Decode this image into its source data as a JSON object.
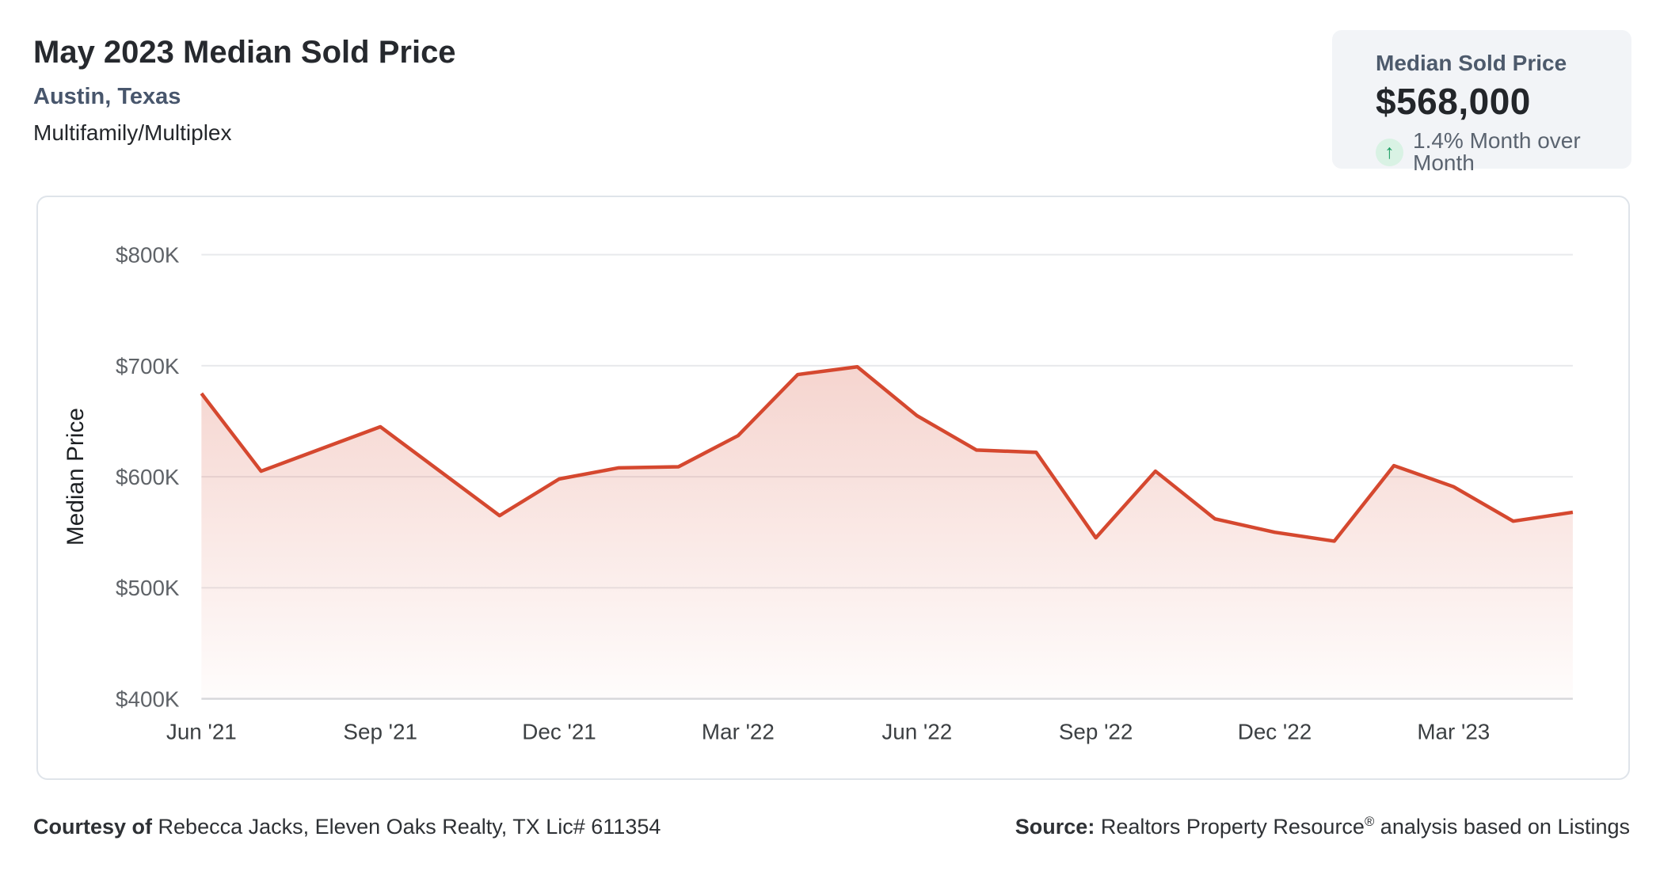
{
  "header": {
    "title": "May 2023 Median Sold Price",
    "location": "Austin, Texas",
    "property_type": "Multifamily/Multiplex"
  },
  "stat_card": {
    "label": "Median Sold Price",
    "value": "$568,000",
    "arrow_glyph": "↑",
    "change_text": "1.4% Month over Month",
    "trend": "up",
    "badge_bg_color": "#d9f2e4",
    "arrow_color": "#1b9e63",
    "card_bg_color": "#f2f4f7"
  },
  "chart_data": {
    "type": "area",
    "title": "",
    "ylabel": "Median Price",
    "xlabel": "",
    "grid": true,
    "legend": "none",
    "line_color": "#d5482f",
    "fill_color": "#d5482f",
    "ylim": [
      400000,
      800000
    ],
    "y_tick_labels": [
      "$800K",
      "$700K",
      "$600K",
      "$500K",
      "$400K"
    ],
    "y_tick_values": [
      800000,
      700000,
      600000,
      500000,
      400000
    ],
    "x": [
      "Jun '21",
      "Jul '21",
      "Aug '21",
      "Sep '21",
      "Oct '21",
      "Nov '21",
      "Dec '21",
      "Jan '22",
      "Feb '22",
      "Mar '22",
      "Apr '22",
      "May '22",
      "Jun '22",
      "Jul '22",
      "Aug '22",
      "Sep '22",
      "Oct '22",
      "Nov '22",
      "Dec '22",
      "Jan '23",
      "Feb '23",
      "Mar '23",
      "Apr '23",
      "May '23"
    ],
    "values": [
      675000,
      605000,
      625000,
      645000,
      605000,
      565000,
      598000,
      608000,
      609000,
      637000,
      692000,
      699000,
      655000,
      624000,
      622000,
      545000,
      605000,
      562000,
      550000,
      542000,
      610000,
      591000,
      560000,
      568000
    ],
    "x_tick_every": 3,
    "x_tick_labels": [
      "Jun '21",
      "Sep '21",
      "Dec '21",
      "Mar '22",
      "Jun '22",
      "Sep '22",
      "Dec '22",
      "Mar '23"
    ]
  },
  "footer": {
    "courtesy_label": "Courtesy of",
    "courtesy_text": " Rebecca Jacks, Eleven Oaks Realty, TX Lic# 611354",
    "source_label": "Source:",
    "source_name": " Realtors Property Resource",
    "source_reg": "®",
    "source_rest": " analysis based on Listings"
  }
}
